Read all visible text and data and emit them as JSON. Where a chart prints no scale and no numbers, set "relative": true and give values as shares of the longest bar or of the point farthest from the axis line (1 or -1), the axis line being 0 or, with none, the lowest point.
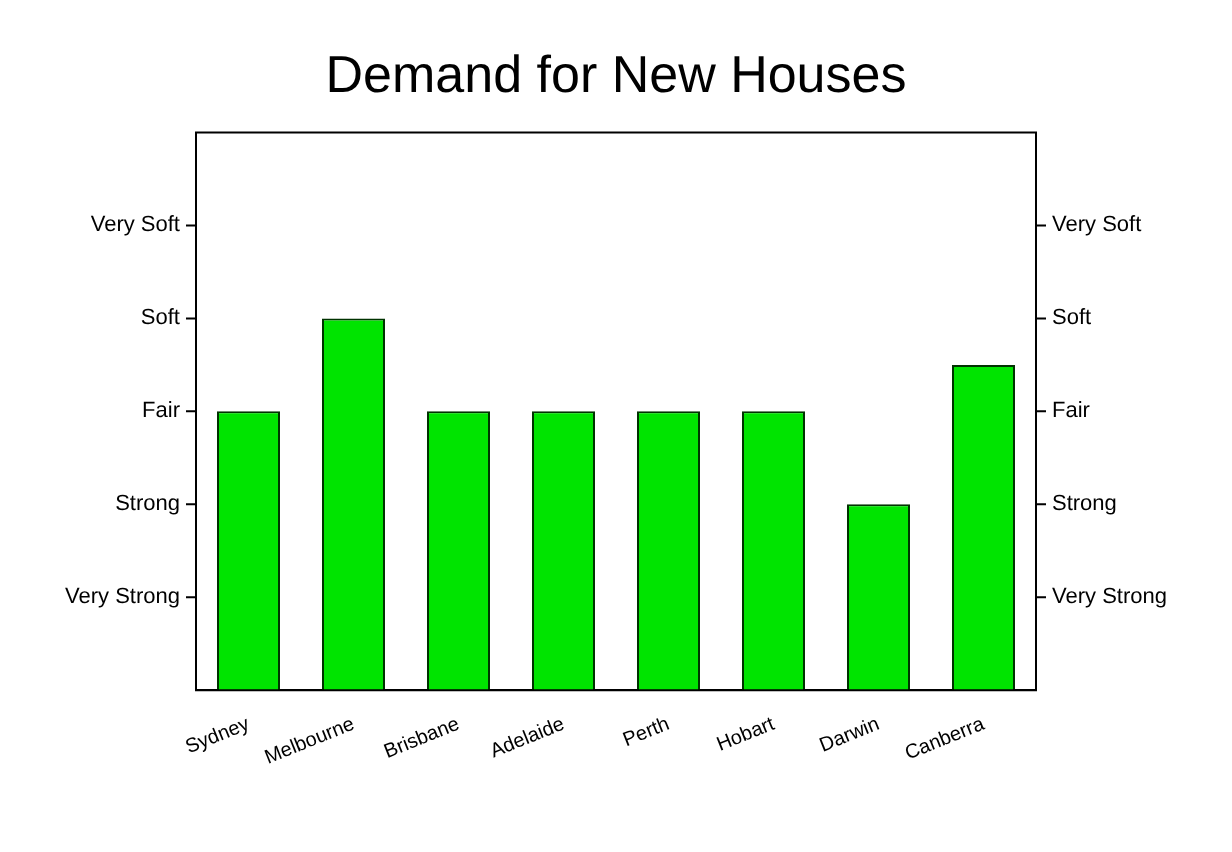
{
  "chart_data": {
    "type": "bar",
    "title": "Demand for New Houses",
    "categories": [
      "Sydney",
      "Melbourne",
      "Brisbane",
      "Adelaide",
      "Perth",
      "Hobart",
      "Darwin",
      "Canberra"
    ],
    "values": [
      0.75,
      1,
      0.75,
      0.75,
      0.75,
      0.75,
      0.5,
      0.875
    ],
    "relative": true,
    "color": "#00e400",
    "annotations": [
      "Very Strong",
      "Strong",
      "Fair",
      "Soft",
      "Very Soft"
    ],
    "legend": false
  }
}
